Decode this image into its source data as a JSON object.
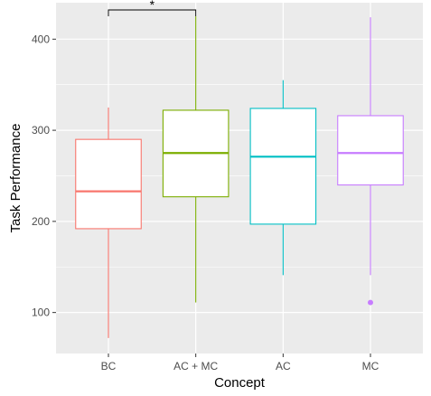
{
  "chart_data": {
    "type": "boxplot",
    "title": "",
    "xlabel": "Concept",
    "ylabel": "Task Performance",
    "ylim": [
      55,
      440
    ],
    "yticks": [
      100,
      200,
      300,
      400
    ],
    "grid": true,
    "legend": "none",
    "categories": [
      "BC",
      "AC + MC",
      "AC",
      "MC"
    ],
    "series": [
      {
        "category": "BC",
        "min": 72,
        "q1": 192,
        "median": 233,
        "q3": 290,
        "max": 325,
        "outliers": [],
        "color": "#F8766D"
      },
      {
        "category": "AC + MC",
        "min": 111,
        "q1": 227,
        "median": 275,
        "q3": 322,
        "max": 425,
        "outliers": [],
        "color": "#7CAE00"
      },
      {
        "category": "AC",
        "min": 141,
        "q1": 197,
        "median": 271,
        "q3": 324,
        "max": 355,
        "outliers": [],
        "color": "#00BFC4"
      },
      {
        "category": "MC",
        "min": 141,
        "q1": 240,
        "median": 275,
        "q3": 316,
        "max": 424,
        "outliers": [
          111
        ],
        "color": "#C77CFF"
      }
    ],
    "annotations": [
      {
        "from": "BC",
        "to": "AC + MC",
        "label": "*"
      }
    ]
  }
}
